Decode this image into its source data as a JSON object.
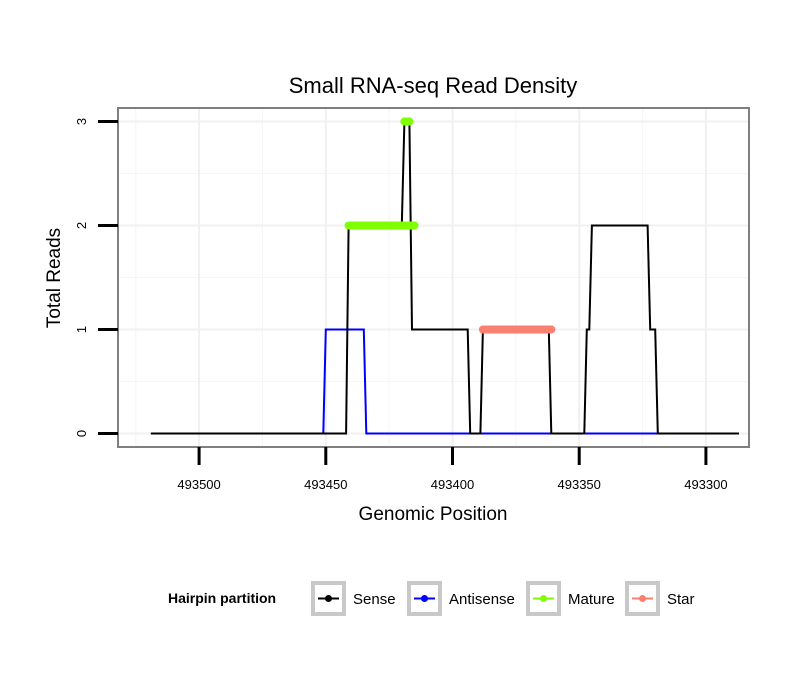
{
  "chart_data": {
    "type": "line",
    "title": "Small RNA-seq Read Density",
    "xlabel": "Genomic Position",
    "ylabel": "Total Reads",
    "x_reversed": true,
    "xlim": [
      493283,
      493532
    ],
    "ylim": [
      -0.13,
      3.13
    ],
    "xticks": [
      493500,
      493450,
      493400,
      493350,
      493300
    ],
    "xtick_labels": [
      "493500",
      "493450",
      "493400",
      "493350",
      "493300"
    ],
    "yticks": [
      0,
      1,
      2,
      3
    ],
    "ytick_labels": [
      "0",
      "1",
      "2",
      "3"
    ],
    "grid": true,
    "legend": {
      "title": "Hairpin partition",
      "position": "bottom",
      "entries": [
        {
          "name": "Sense",
          "color": "#000000"
        },
        {
          "name": "Antisense",
          "color": "#0000ff"
        },
        {
          "name": "Mature",
          "color": "#7fff00"
        },
        {
          "name": "Star",
          "color": "#fa8072"
        }
      ]
    },
    "series": [
      {
        "name": "Sense",
        "color": "#000000",
        "style": "line",
        "points": [
          [
            493519,
            0
          ],
          [
            493442,
            0
          ],
          [
            493441,
            2
          ],
          [
            493420,
            2
          ],
          [
            493419,
            3
          ],
          [
            493417,
            3
          ],
          [
            493416,
            1
          ],
          [
            493394,
            1
          ],
          [
            493393,
            0
          ],
          [
            493389,
            0
          ],
          [
            493388,
            1
          ],
          [
            493362,
            1
          ],
          [
            493361,
            0
          ],
          [
            493348,
            0
          ],
          [
            493347,
            1
          ],
          [
            493346,
            1
          ],
          [
            493345,
            2
          ],
          [
            493323,
            2
          ],
          [
            493322,
            1
          ],
          [
            493320,
            1
          ],
          [
            493319,
            0
          ],
          [
            493287,
            0
          ]
        ]
      },
      {
        "name": "Antisense",
        "color": "#0000ff",
        "style": "line",
        "points": [
          [
            493519,
            0
          ],
          [
            493451,
            0
          ],
          [
            493450,
            1
          ],
          [
            493435,
            1
          ],
          [
            493434,
            0
          ],
          [
            493287,
            0
          ]
        ]
      },
      {
        "name": "Mature",
        "color": "#7fff00",
        "style": "points",
        "segments": [
          {
            "x_from": 493441,
            "x_to": 493415,
            "y": 2
          },
          {
            "x_from": 493419,
            "x_to": 493417,
            "y": 3
          }
        ]
      },
      {
        "name": "Star",
        "color": "#fa8072",
        "style": "points",
        "segments": [
          {
            "x_from": 493388,
            "x_to": 493361,
            "y": 1
          }
        ]
      }
    ]
  }
}
